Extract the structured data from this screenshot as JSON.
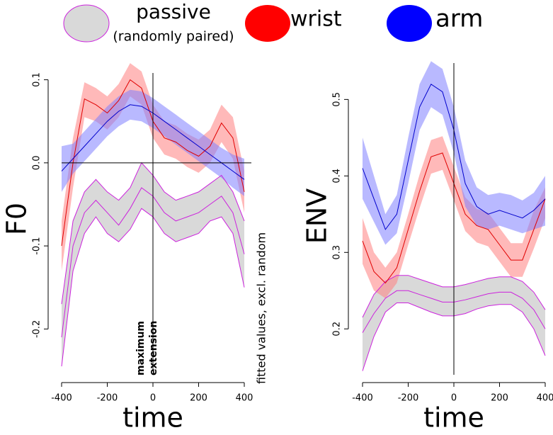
{
  "legend_note": "(randomly paired)",
  "chart_data": [
    {
      "type": "line",
      "xlabel": "time",
      "ylabel": "F0",
      "annotation": "maximum extension",
      "side_note": "fitted values, excl. random",
      "vline": 0,
      "hline": {
        "value": 0,
        "label": "0.0"
      },
      "xlim": [
        -400,
        400
      ],
      "ylim": [
        -0.25,
        0.115
      ],
      "xticks": [
        -400,
        -200,
        0,
        200,
        400
      ],
      "yticks": [
        -0.2,
        -0.1,
        {
          "value": 0,
          "label": "0.0"
        },
        0.1
      ],
      "x": [
        -400,
        -350,
        -300,
        -250,
        -200,
        -150,
        -100,
        -50,
        0,
        50,
        100,
        150,
        200,
        250,
        300,
        350,
        400
      ],
      "series": [
        {
          "name": "passive",
          "color": "#cc22dd",
          "band_color": "#d9d9d9",
          "band_edges": true,
          "values": [
            -0.21,
            -0.1,
            -0.06,
            -0.045,
            -0.06,
            -0.075,
            -0.055,
            -0.03,
            -0.04,
            -0.06,
            -0.07,
            -0.065,
            -0.06,
            -0.05,
            -0.04,
            -0.06,
            -0.11
          ],
          "lower": [
            -0.245,
            -0.13,
            -0.085,
            -0.065,
            -0.085,
            -0.095,
            -0.08,
            -0.055,
            -0.065,
            -0.085,
            -0.095,
            -0.09,
            -0.085,
            -0.07,
            -0.065,
            -0.085,
            -0.15
          ],
          "upper": [
            -0.17,
            -0.07,
            -0.035,
            -0.02,
            -0.035,
            -0.045,
            -0.03,
            0,
            -0.015,
            -0.035,
            -0.045,
            -0.04,
            -0.035,
            -0.025,
            -0.015,
            -0.035,
            -0.07
          ]
        },
        {
          "name": "wrist",
          "color": "#e00000",
          "band_color": "#ff8080",
          "values": [
            -0.1,
            0.0,
            0.077,
            0.07,
            0.06,
            0.075,
            0.1,
            0.09,
            0.05,
            0.03,
            0.025,
            0.015,
            0.008,
            0.02,
            0.048,
            0.03,
            -0.035
          ],
          "lower": [
            -0.13,
            -0.03,
            0.055,
            0.05,
            0.04,
            0.055,
            0.08,
            0.07,
            0.03,
            0.01,
            0.005,
            -0.005,
            -0.012,
            0,
            0.025,
            0.005,
            -0.06
          ],
          "upper": [
            -0.07,
            0.03,
            0.097,
            0.09,
            0.08,
            0.095,
            0.12,
            0.11,
            0.07,
            0.05,
            0.045,
            0.035,
            0.028,
            0.04,
            0.07,
            0.055,
            -0.01
          ]
        },
        {
          "name": "arm",
          "color": "#0000cc",
          "band_color": "#8080ff",
          "values": [
            -0.01,
            0.005,
            0.02,
            0.035,
            0.05,
            0.062,
            0.07,
            0.068,
            0.06,
            0.05,
            0.04,
            0.03,
            0.02,
            0.01,
            0.0,
            -0.01,
            -0.02
          ],
          "lower": [
            -0.035,
            -0.013,
            0.002,
            0.017,
            0.032,
            0.044,
            0.052,
            0.05,
            0.042,
            0.032,
            0.022,
            0.012,
            0.002,
            -0.008,
            -0.018,
            -0.03,
            -0.04
          ],
          "upper": [
            0.02,
            0.023,
            0.038,
            0.053,
            0.068,
            0.08,
            0.088,
            0.086,
            0.078,
            0.068,
            0.058,
            0.048,
            0.038,
            0.028,
            0.018,
            0.01,
            0.005
          ]
        }
      ]
    },
    {
      "type": "line",
      "xlabel": "time",
      "ylabel": "ENV",
      "vline": 0,
      "xlim": [
        -400,
        400
      ],
      "ylim": [
        0.14,
        0.555
      ],
      "xticks": [
        -400,
        -200,
        0,
        200,
        400
      ],
      "yticks": [
        0.2,
        0.3,
        0.4,
        0.5
      ],
      "x": [
        -400,
        -350,
        -300,
        -250,
        -200,
        -150,
        -100,
        -50,
        0,
        50,
        100,
        150,
        200,
        250,
        300,
        350,
        400
      ],
      "series": [
        {
          "name": "passive",
          "color": "#cc22dd",
          "band_color": "#d9d9d9",
          "band_edges": true,
          "values": [
            0.195,
            0.22,
            0.24,
            0.25,
            0.25,
            0.245,
            0.24,
            0.235,
            0.235,
            0.238,
            0.242,
            0.246,
            0.248,
            0.248,
            0.24,
            0.225,
            0.2
          ],
          "lower": [
            0.145,
            0.19,
            0.222,
            0.234,
            0.234,
            0.228,
            0.222,
            0.217,
            0.217,
            0.22,
            0.226,
            0.23,
            0.232,
            0.232,
            0.222,
            0.2,
            0.165
          ],
          "upper": [
            0.215,
            0.245,
            0.262,
            0.27,
            0.27,
            0.265,
            0.26,
            0.255,
            0.255,
            0.258,
            0.262,
            0.266,
            0.268,
            0.268,
            0.262,
            0.248,
            0.225
          ]
        },
        {
          "name": "wrist",
          "color": "#e00000",
          "band_color": "#ff8080",
          "values": [
            0.315,
            0.275,
            0.26,
            0.28,
            0.33,
            0.38,
            0.425,
            0.43,
            0.39,
            0.35,
            0.335,
            0.33,
            0.31,
            0.29,
            0.29,
            0.33,
            0.37
          ],
          "lower": [
            0.285,
            0.25,
            0.24,
            0.26,
            0.31,
            0.358,
            0.403,
            0.408,
            0.368,
            0.328,
            0.313,
            0.308,
            0.288,
            0.268,
            0.268,
            0.305,
            0.345
          ],
          "upper": [
            0.345,
            0.3,
            0.28,
            0.3,
            0.35,
            0.402,
            0.447,
            0.452,
            0.412,
            0.372,
            0.357,
            0.352,
            0.332,
            0.312,
            0.312,
            0.355,
            0.385
          ]
        },
        {
          "name": "arm",
          "color": "#0000cc",
          "band_color": "#8080ff",
          "values": [
            0.41,
            0.37,
            0.33,
            0.35,
            0.42,
            0.49,
            0.52,
            0.51,
            0.46,
            0.39,
            0.36,
            0.35,
            0.355,
            0.35,
            0.345,
            0.355,
            0.37
          ],
          "lower": [
            0.37,
            0.34,
            0.31,
            0.325,
            0.39,
            0.46,
            0.49,
            0.48,
            0.43,
            0.36,
            0.335,
            0.33,
            0.335,
            0.33,
            0.325,
            0.33,
            0.335
          ],
          "upper": [
            0.45,
            0.4,
            0.35,
            0.375,
            0.45,
            0.52,
            0.55,
            0.54,
            0.49,
            0.42,
            0.385,
            0.375,
            0.378,
            0.375,
            0.368,
            0.378,
            0.4
          ]
        }
      ]
    }
  ]
}
